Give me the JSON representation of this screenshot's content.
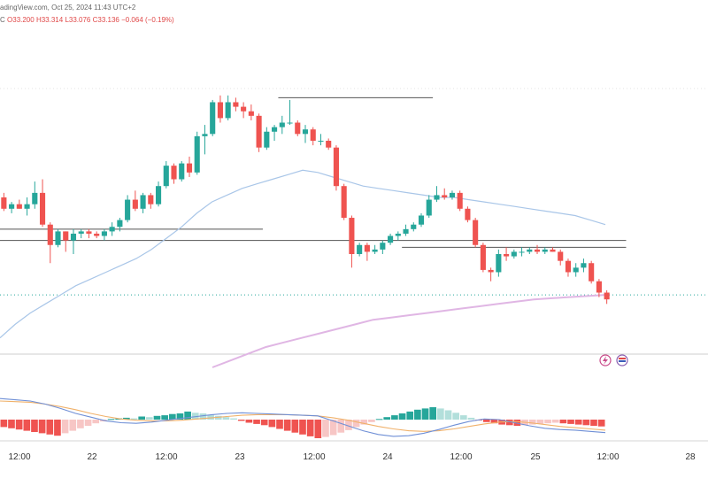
{
  "header": {
    "source_text": "adingView.com, Oct 25, 2024 11:43 UTC+2",
    "ohlc": {
      "symbol_tail": "C",
      "open": "O33.200",
      "high": "H33.314",
      "low": "L33.076",
      "close": "C33.136",
      "change": "−0.064 (−0.19%)"
    }
  },
  "colors": {
    "up": "#26a69a",
    "down": "#ef5350",
    "ma_fast": "#a9c6e8",
    "ma_slow": "#e0b6e4",
    "macd": "#6f8fd6",
    "signal": "#f0b16a",
    "hist_up": "#26a69a",
    "hist_down": "#ef5350",
    "hist_up_light": "#b2dfdb",
    "hist_down_light": "#f7c6c5"
  },
  "chart_data": {
    "type": "candlestick",
    "x_ticks": [
      "12:00",
      "22",
      "12:00",
      "23",
      "12:00",
      "24",
      "12:00",
      "25",
      "12:00",
      "28"
    ],
    "candles": [
      [
        33.05,
        33.07,
        32.99,
        33.0
      ],
      [
        33.0,
        33.03,
        32.98,
        33.02
      ],
      [
        33.02,
        33.04,
        33.0,
        33.0
      ],
      [
        33.0,
        33.05,
        32.97,
        33.02
      ],
      [
        33.02,
        33.12,
        33.0,
        33.07
      ],
      [
        33.07,
        33.13,
        32.92,
        32.93
      ],
      [
        32.93,
        32.94,
        32.76,
        32.84
      ],
      [
        32.84,
        32.91,
        32.83,
        32.9
      ],
      [
        32.9,
        32.9,
        32.81,
        32.86
      ],
      [
        32.86,
        32.91,
        32.8,
        32.89
      ],
      [
        32.89,
        32.91,
        32.87,
        32.9
      ],
      [
        32.9,
        32.91,
        32.87,
        32.89
      ],
      [
        32.89,
        32.9,
        32.87,
        32.88
      ],
      [
        32.88,
        32.91,
        32.86,
        32.9
      ],
      [
        32.9,
        32.94,
        32.88,
        32.92
      ],
      [
        32.92,
        32.96,
        32.9,
        32.95
      ],
      [
        32.95,
        33.06,
        32.94,
        33.04
      ],
      [
        33.04,
        33.08,
        32.99,
        33.0
      ],
      [
        33.0,
        33.07,
        32.98,
        33.06
      ],
      [
        33.06,
        33.07,
        33.0,
        33.02
      ],
      [
        33.02,
        33.12,
        33.01,
        33.1
      ],
      [
        33.1,
        33.21,
        33.09,
        33.19
      ],
      [
        33.19,
        33.2,
        33.11,
        33.13
      ],
      [
        33.13,
        33.21,
        33.12,
        33.2
      ],
      [
        33.2,
        33.23,
        33.14,
        33.16
      ],
      [
        33.16,
        33.34,
        33.15,
        33.32
      ],
      [
        33.32,
        33.37,
        33.24,
        33.33
      ],
      [
        33.33,
        33.48,
        33.32,
        33.47
      ],
      [
        33.47,
        33.5,
        33.38,
        33.4
      ],
      [
        33.4,
        33.5,
        33.39,
        33.47
      ],
      [
        33.47,
        33.49,
        33.43,
        33.45
      ],
      [
        33.45,
        33.47,
        33.4,
        33.43
      ],
      [
        33.43,
        33.46,
        33.39,
        33.41
      ],
      [
        33.41,
        33.42,
        33.25,
        33.27
      ],
      [
        33.27,
        33.36,
        33.26,
        33.34
      ],
      [
        33.34,
        33.37,
        33.3,
        33.36
      ],
      [
        33.36,
        33.41,
        33.33,
        33.38
      ],
      [
        33.38,
        33.48,
        33.37,
        33.38
      ],
      [
        33.38,
        33.39,
        33.32,
        33.33
      ],
      [
        33.33,
        33.37,
        33.29,
        33.35
      ],
      [
        33.35,
        33.36,
        33.28,
        33.3
      ],
      [
        33.3,
        33.33,
        33.28,
        33.3
      ],
      [
        33.3,
        33.31,
        33.26,
        33.27
      ],
      [
        33.27,
        33.28,
        33.08,
        33.1
      ],
      [
        33.1,
        33.11,
        32.95,
        32.96
      ],
      [
        32.96,
        32.97,
        32.74,
        32.8
      ],
      [
        32.8,
        32.85,
        32.79,
        32.84
      ],
      [
        32.84,
        32.85,
        32.77,
        32.81
      ],
      [
        32.81,
        32.84,
        32.8,
        32.82
      ],
      [
        32.82,
        32.86,
        32.8,
        32.85
      ],
      [
        32.85,
        32.89,
        32.84,
        32.88
      ],
      [
        32.88,
        32.9,
        32.86,
        32.89
      ],
      [
        32.89,
        32.93,
        32.88,
        32.91
      ],
      [
        32.91,
        32.94,
        32.9,
        32.93
      ],
      [
        32.93,
        32.98,
        32.92,
        32.97
      ],
      [
        32.97,
        33.06,
        32.96,
        33.04
      ],
      [
        33.04,
        33.1,
        33.03,
        33.06
      ],
      [
        33.06,
        33.09,
        33.04,
        33.05
      ],
      [
        33.05,
        33.08,
        33.04,
        33.07
      ],
      [
        33.07,
        33.08,
        32.99,
        33.0
      ],
      [
        33.0,
        33.01,
        32.94,
        32.95
      ],
      [
        32.95,
        32.96,
        32.83,
        32.84
      ],
      [
        32.84,
        32.85,
        32.72,
        32.73
      ],
      [
        32.73,
        32.74,
        32.68,
        32.72
      ],
      [
        32.72,
        32.82,
        32.7,
        32.8
      ],
      [
        32.8,
        32.83,
        32.77,
        32.79
      ],
      [
        32.79,
        32.82,
        32.78,
        32.81
      ],
      [
        32.81,
        32.83,
        32.79,
        32.81
      ],
      [
        32.81,
        32.83,
        32.8,
        32.82
      ],
      [
        32.82,
        32.84,
        32.8,
        32.81
      ],
      [
        32.81,
        32.83,
        32.8,
        32.82
      ],
      [
        32.82,
        32.83,
        32.81,
        32.81
      ],
      [
        32.81,
        32.82,
        32.75,
        32.77
      ],
      [
        32.77,
        32.78,
        32.7,
        32.72
      ],
      [
        32.72,
        32.76,
        32.7,
        32.74
      ],
      [
        32.74,
        32.78,
        32.72,
        32.76
      ],
      [
        32.76,
        32.77,
        32.67,
        32.68
      ],
      [
        32.68,
        32.69,
        32.61,
        32.63
      ],
      [
        32.63,
        32.64,
        32.58,
        32.6
      ]
    ],
    "ma_fast": [
      32.43,
      32.49,
      32.54,
      32.58,
      32.62,
      32.66,
      32.69,
      32.72,
      32.75,
      32.78,
      32.82,
      32.87,
      32.92,
      32.98,
      33.03,
      33.06,
      33.09,
      33.11,
      33.13,
      33.15,
      33.17,
      33.16,
      33.14,
      33.12,
      33.1,
      33.09,
      33.08,
      33.07,
      33.06,
      33.05,
      33.05,
      33.04,
      33.03,
      33.02,
      33.01,
      33.0,
      32.99,
      32.98,
      32.97,
      32.95,
      32.93
    ],
    "ma_slow": [
      32.3,
      32.33,
      32.36,
      32.39,
      32.41,
      32.43,
      32.45,
      32.47,
      32.49,
      32.51,
      32.52,
      32.53,
      32.54,
      32.55,
      32.56,
      32.57,
      32.58,
      32.59,
      32.6,
      32.605,
      32.61,
      32.615,
      32.62
    ],
    "levels": [
      {
        "value": 33.49,
        "x0": 36,
        "x1": 55
      },
      {
        "value": 32.91,
        "x0": 0,
        "x1": 33
      },
      {
        "value": 32.86,
        "x0": 0,
        "x1": 80
      },
      {
        "value": 32.83,
        "x0": 52,
        "x1": 80
      }
    ],
    "dotted_levels": [
      32.62
    ],
    "macd_hist": [
      -1.2,
      -1.4,
      -1.6,
      -1.8,
      -2.0,
      -2.2,
      -2.4,
      -2.6,
      -2.2,
      -1.8,
      -1.4,
      -1.0,
      -0.6,
      -0.3,
      0.1,
      0.2,
      0.3,
      0.2,
      0.5,
      0.4,
      0.6,
      0.7,
      0.9,
      1.0,
      1.3,
      1.1,
      1.0,
      0.8,
      0.6,
      0.4,
      0.2,
      -0.2,
      -0.5,
      -0.7,
      -0.9,
      -1.2,
      -1.5,
      -1.8,
      -2.1,
      -2.4,
      -2.7,
      -3.0,
      -2.8,
      -2.5,
      -2.1,
      -1.7,
      -1.2,
      -0.8,
      -0.4,
      0.1,
      0.4,
      0.7,
      1.0,
      1.3,
      1.6,
      1.8,
      2.0,
      1.8,
      1.5,
      1.1,
      0.7,
      0.3,
      -0.1,
      -0.4,
      -0.6,
      -0.8,
      -0.9,
      -1.0,
      -0.9,
      -0.8,
      -0.7,
      -0.6,
      -0.5,
      -0.6,
      -0.7,
      -0.8,
      -0.9,
      -1.0,
      -1.1
    ],
    "macd": [
      3.4,
      3.2,
      3.0,
      2.5,
      1.8,
      1.0,
      0.4,
      -0.2,
      -0.5,
      -0.6,
      -0.4,
      -0.1,
      0.2,
      0.5,
      0.8,
      1.0,
      1.1,
      1.0,
      0.9,
      0.8,
      0.7,
      0.6,
      -0.2,
      -1.0,
      -1.8,
      -2.4,
      -2.7,
      -2.6,
      -2.2,
      -1.6,
      -0.9,
      -0.3,
      0.1,
      0.0,
      -0.5,
      -1.0,
      -1.4,
      -1.6,
      -1.7,
      -1.9,
      -2.1
    ],
    "signal": [
      3.0,
      2.9,
      2.8,
      2.5,
      2.1,
      1.6,
      1.0,
      0.5,
      0.1,
      -0.1,
      -0.2,
      -0.2,
      -0.1,
      0.1,
      0.3,
      0.5,
      0.7,
      0.8,
      0.8,
      0.8,
      0.7,
      0.6,
      0.3,
      -0.1,
      -0.6,
      -1.1,
      -1.5,
      -1.8,
      -1.9,
      -1.8,
      -1.5,
      -1.1,
      -0.7,
      -0.4,
      -0.3,
      -0.5,
      -0.8,
      -1.1,
      -1.3,
      -1.5,
      -1.7
    ],
    "macd_range": [
      -4,
      4
    ],
    "price_range": [
      32.3,
      33.55
    ]
  }
}
